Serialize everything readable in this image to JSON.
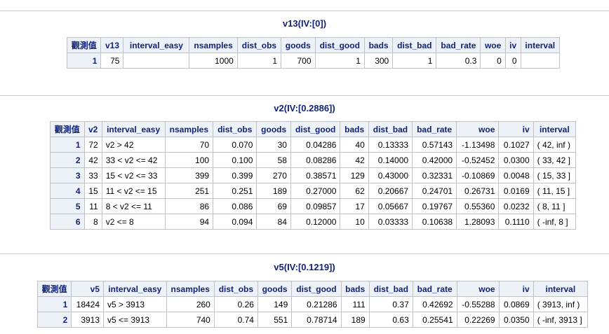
{
  "tables": [
    {
      "title": "v13(IV:[0])",
      "headers": [
        "觀測值",
        "v13",
        "interval_easy",
        "nsamples",
        "dist_obs",
        "goods",
        "dist_good",
        "bads",
        "dist_bad",
        "bad_rate",
        "woe",
        "iv",
        "interval"
      ],
      "rows": [
        [
          "1",
          "75",
          "",
          "1000",
          "1",
          "700",
          "1",
          "300",
          "1",
          "0.3",
          "0",
          "0",
          ""
        ]
      ]
    },
    {
      "title": "v2(IV:[0.2886])",
      "headers": [
        "觀測值",
        "v2",
        "interval_easy",
        "nsamples",
        "dist_obs",
        "goods",
        "dist_good",
        "bads",
        "dist_bad",
        "bad_rate",
        "woe",
        "iv",
        "interval"
      ],
      "rows": [
        [
          "1",
          "72",
          "v2 > 42",
          "70",
          "0.070",
          "30",
          "0.04286",
          "40",
          "0.13333",
          "0.57143",
          "-1.13498",
          "0.1027",
          "( 42, inf )"
        ],
        [
          "2",
          "42",
          "33 < v2 <= 42",
          "100",
          "0.100",
          "58",
          "0.08286",
          "42",
          "0.14000",
          "0.42000",
          "-0.52452",
          "0.0300",
          "( 33, 42 ]"
        ],
        [
          "3",
          "33",
          "15 < v2 <= 33",
          "399",
          "0.399",
          "270",
          "0.38571",
          "129",
          "0.43000",
          "0.32331",
          "-0.10869",
          "0.0048",
          "( 15, 33 ]"
        ],
        [
          "4",
          "15",
          "11 < v2 <= 15",
          "251",
          "0.251",
          "189",
          "0.27000",
          "62",
          "0.20667",
          "0.24701",
          "0.26731",
          "0.0169",
          "( 11, 15 ]"
        ],
        [
          "5",
          "11",
          "8 < v2 <= 11",
          "86",
          "0.086",
          "69",
          "0.09857",
          "17",
          "0.05667",
          "0.19767",
          "0.55360",
          "0.0232",
          "( 8, 11 ]"
        ],
        [
          "6",
          "8",
          "v2 <= 8",
          "94",
          "0.094",
          "84",
          "0.12000",
          "10",
          "0.03333",
          "0.10638",
          "1.28093",
          "0.1110",
          "( -inf, 8 ]"
        ]
      ]
    },
    {
      "title": "v5(IV:[0.1219])",
      "headers": [
        "觀測值",
        "v5",
        "interval_easy",
        "nsamples",
        "dist_obs",
        "goods",
        "dist_good",
        "bads",
        "dist_bad",
        "bad_rate",
        "woe",
        "iv",
        "interval"
      ],
      "rows": [
        [
          "1",
          "18424",
          "v5 > 3913",
          "260",
          "0.26",
          "149",
          "0.21286",
          "111",
          "0.37",
          "0.42692",
          "-0.55288",
          "0.0869",
          "( 3913, inf )"
        ],
        [
          "2",
          "3913",
          "v5 <= 3913",
          "740",
          "0.74",
          "551",
          "0.78714",
          "189",
          "0.63",
          "0.25541",
          "0.22269",
          "0.0350",
          "( -inf, 3913 ]"
        ]
      ]
    }
  ]
}
